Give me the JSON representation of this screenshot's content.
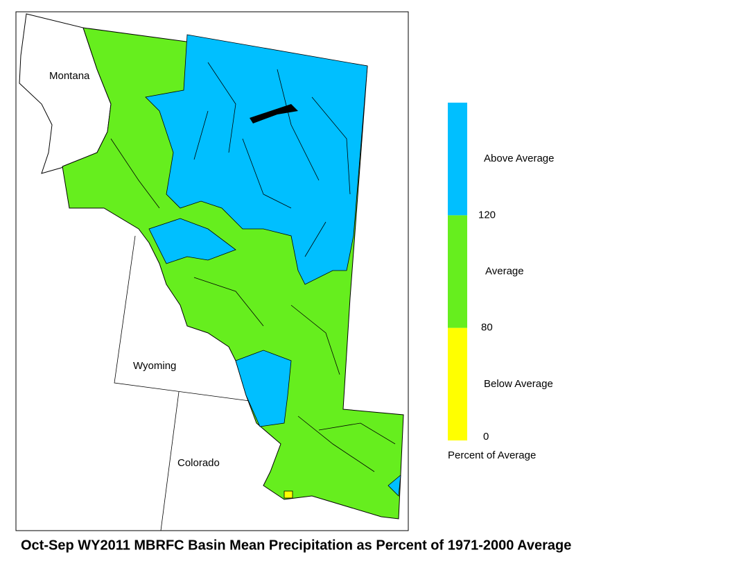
{
  "map": {
    "states": [
      "Montana",
      "Wyoming",
      "Colorado"
    ]
  },
  "legend": {
    "title": "Percent of Average",
    "classes": [
      {
        "label": "Below Average",
        "color": "#ffff00"
      },
      {
        "label": "Average",
        "color": "#66ee1e"
      },
      {
        "label": "Above Average",
        "color": "#00bfff"
      }
    ],
    "ticks": [
      0,
      80,
      120
    ]
  },
  "caption": "Oct-Sep WY2011 MBRFC Basin Mean Precipitation as Percent of 1971-2000 Average"
}
